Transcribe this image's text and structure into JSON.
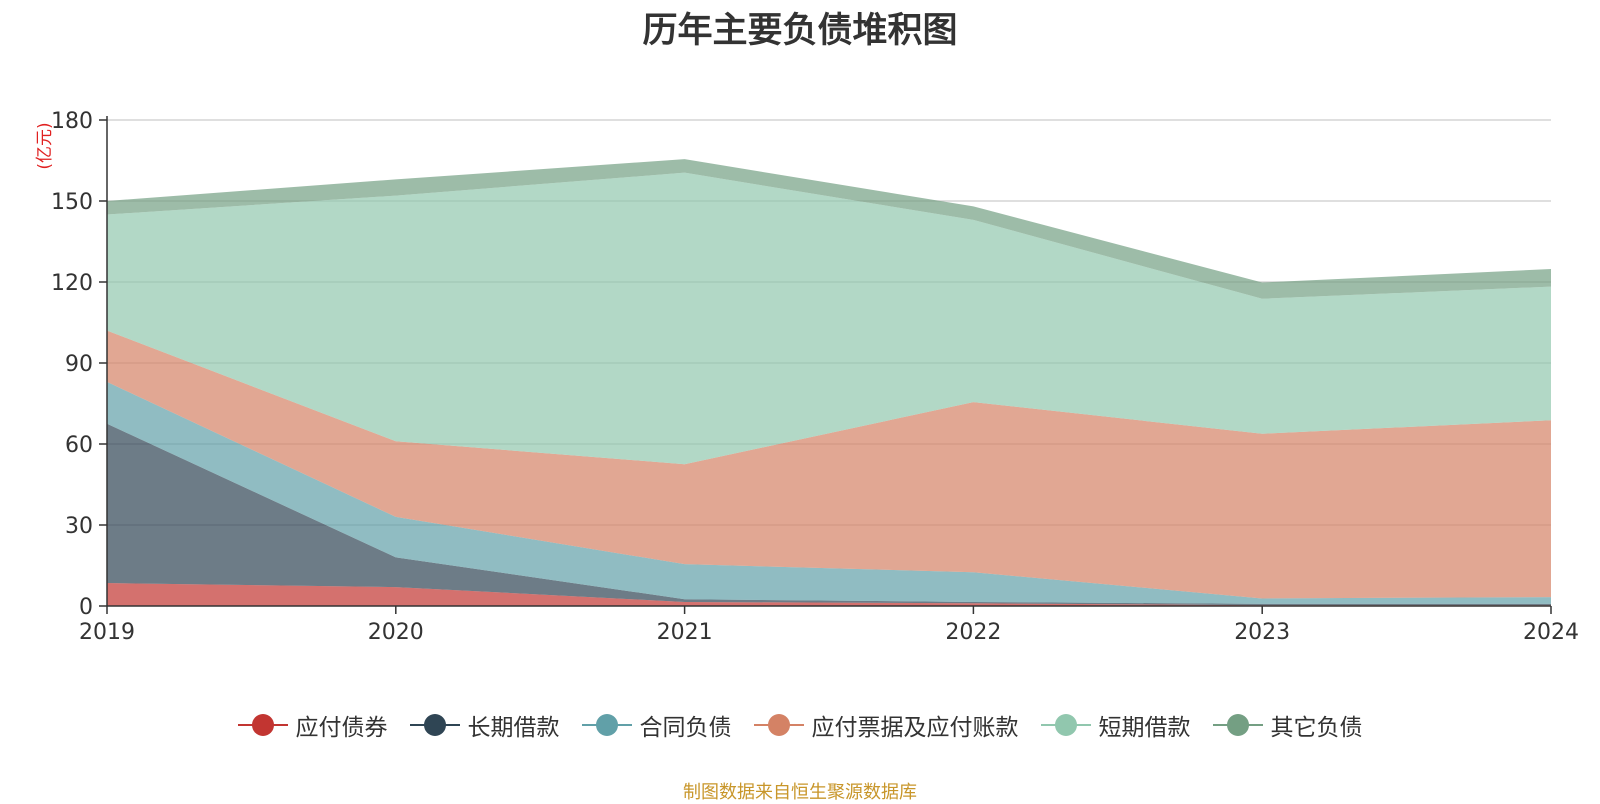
{
  "source_note": "制图数据来自恒生聚源数据库",
  "chart_data": {
    "type": "area",
    "stacked": true,
    "title": "历年主要负债堆积图",
    "ylabel": "(亿元)",
    "xlabel": "",
    "x": [
      "2019",
      "2020",
      "2021",
      "2022",
      "2023",
      "2024"
    ],
    "ylim": [
      0,
      180
    ],
    "yticks": [
      0,
      30,
      60,
      90,
      120,
      150,
      180
    ],
    "grid": true,
    "legend_position": "bottom",
    "series": [
      {
        "name": "应付债券",
        "color": "#c23531",
        "values": [
          8.5,
          7,
          1.5,
          1,
          0.3,
          0.3
        ]
      },
      {
        "name": "长期借款",
        "color": "#2f4554",
        "values": [
          59,
          11,
          1,
          0.5,
          0.5,
          0.5
        ]
      },
      {
        "name": "合同负债",
        "color": "#61a0a8",
        "values": [
          15.5,
          15,
          13,
          11,
          2,
          2.5
        ]
      },
      {
        "name": "应付票据及应付账款",
        "color": "#d48265",
        "values": [
          19,
          28,
          37,
          63,
          61,
          65.5
        ]
      },
      {
        "name": "短期借款",
        "color": "#91c7ae",
        "values": [
          43,
          91,
          108,
          67.5,
          50,
          49.5
        ]
      },
      {
        "name": "其它负债",
        "color": "#749f83",
        "values": [
          5,
          6,
          5,
          5,
          6,
          6.5
        ]
      }
    ]
  }
}
